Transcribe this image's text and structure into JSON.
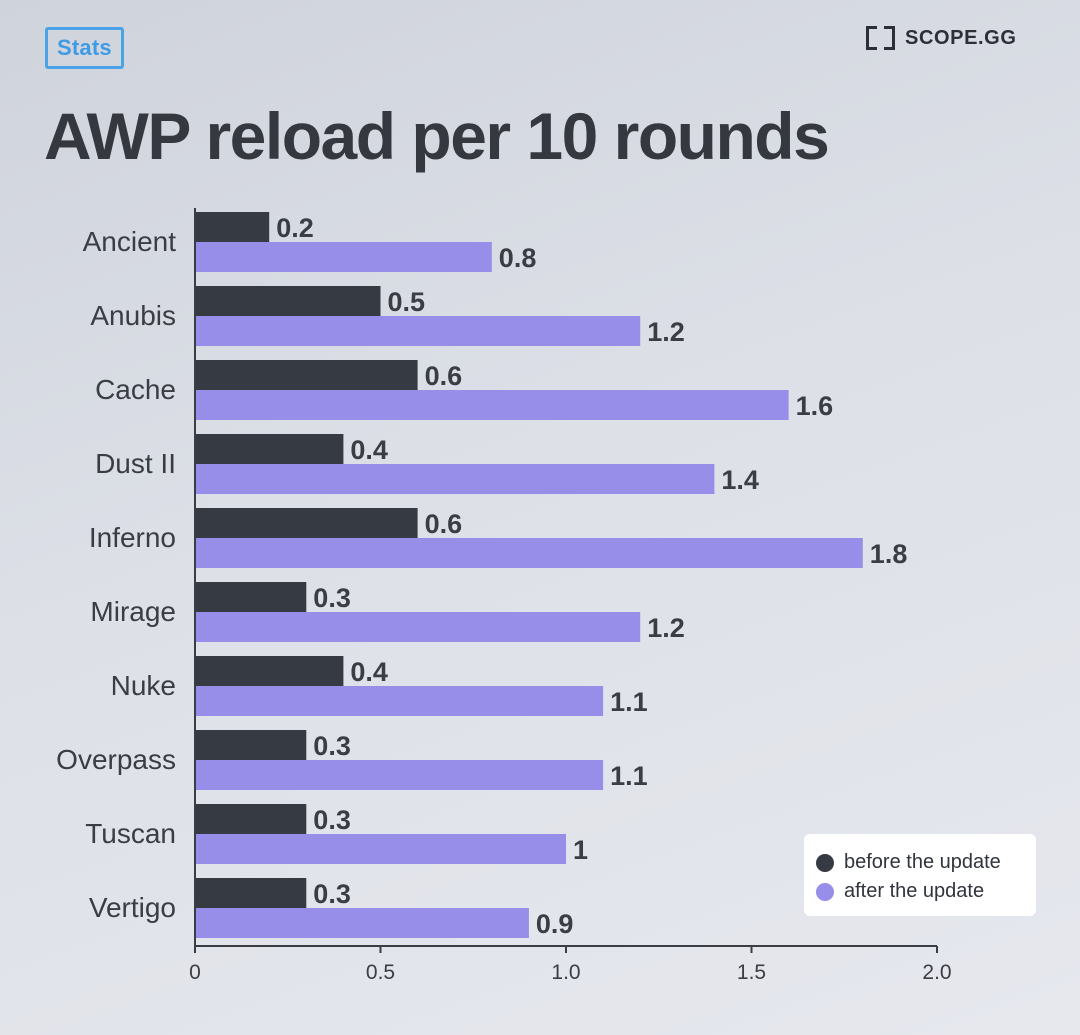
{
  "header": {
    "badge": "Stats",
    "logo_text": "SCOPE.GG",
    "title": "AWP reload per 10 rounds"
  },
  "colors": {
    "before": "#363a42",
    "after": "#968ee9",
    "axis": "#3a3d44",
    "text": "#3a3d44",
    "badge": "#4aa3e6"
  },
  "chart_data": {
    "type": "bar",
    "orientation": "horizontal",
    "title": "AWP reload per 10 rounds",
    "categories": [
      "Ancient",
      "Anubis",
      "Cache",
      "Dust II",
      "Inferno",
      "Mirage",
      "Nuke",
      "Overpass",
      "Tuscan",
      "Vertigo"
    ],
    "series": [
      {
        "name": "before the update",
        "values": [
          0.2,
          0.5,
          0.6,
          0.4,
          0.6,
          0.3,
          0.4,
          0.3,
          0.3,
          0.3
        ]
      },
      {
        "name": "after the update",
        "values": [
          0.8,
          1.2,
          1.6,
          1.4,
          1.8,
          1.2,
          1.1,
          1.1,
          1,
          0.9
        ]
      }
    ],
    "xlim": [
      0,
      2.0
    ],
    "xticks": [
      0,
      0.5,
      1.0,
      1.5,
      2.0
    ],
    "xtick_labels": [
      "0",
      "0.5",
      "1.0",
      "1.5",
      "2.0"
    ],
    "xlabel": "",
    "ylabel": "",
    "grid": false,
    "legend_position": "bottom-right",
    "data_labels": true
  }
}
